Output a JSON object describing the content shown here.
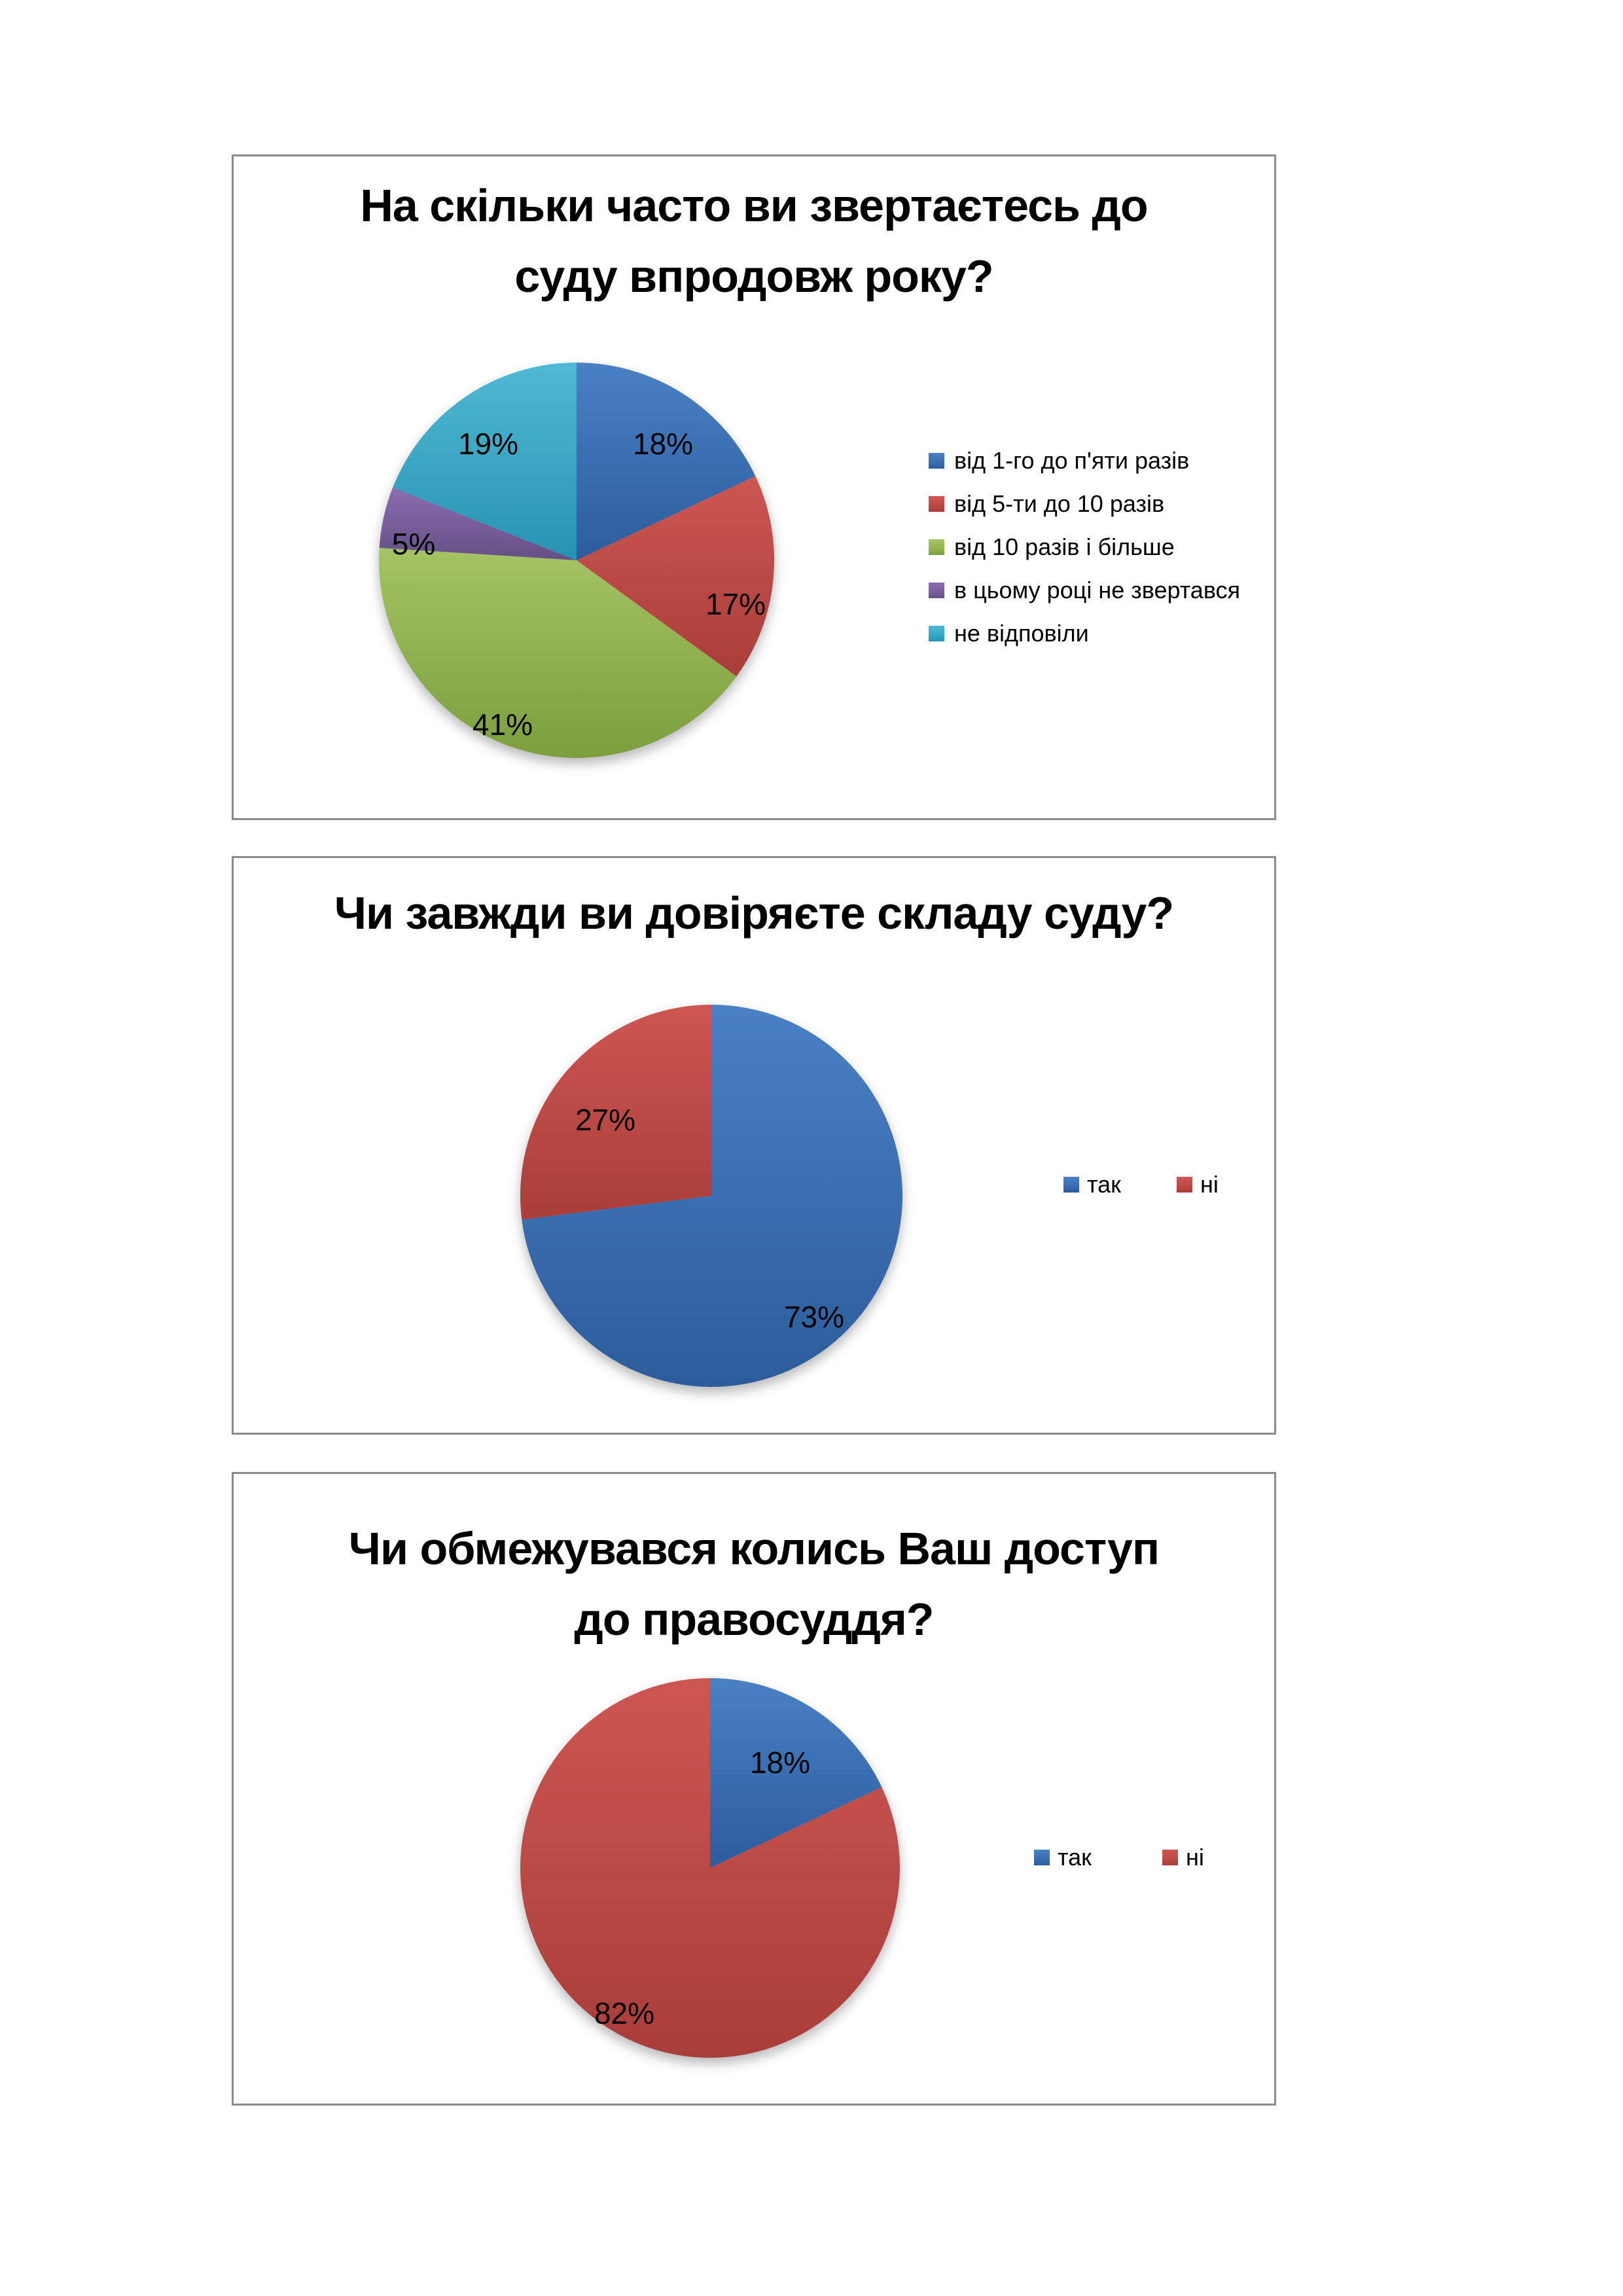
{
  "page": {
    "background": "#ffffff",
    "panel_border_color": "#8b8b8b"
  },
  "chart_data": [
    {
      "type": "pie",
      "title": "На скільки часто ви звертаєтесь до суду впродовж року?",
      "title_lines": [
        "На скільки часто ви звертаєтесь до",
        "суду впродовж року?"
      ],
      "categories": [
        "від 1-го до п'яти разів",
        "від 5-ти до 10 разів",
        "від 10 разів і більше",
        "в цьому році не звертався",
        "не відповіли"
      ],
      "values": [
        18,
        17,
        41,
        5,
        19
      ],
      "data_labels": [
        "18%",
        "17%",
        "41%",
        "5%",
        "19%"
      ],
      "colors": [
        {
          "base": "#3B6FB6",
          "light": "#4A80C4",
          "dark": "#2C5C9C"
        },
        {
          "base": "#C04A46",
          "light": "#CD5652",
          "dark": "#A93D3A"
        },
        {
          "base": "#94B551",
          "light": "#A5C364",
          "dark": "#7C9E3E"
        },
        {
          "base": "#7A5EA0",
          "light": "#8A6DB0",
          "dark": "#655086"
        },
        {
          "base": "#36AAC8",
          "light": "#4FB9D4",
          "dark": "#2892B2"
        }
      ],
      "start_angle_deg": 0,
      "direction": "clockwise",
      "labels_inside": true,
      "legend_position": "right",
      "label_pos": [
        [
          656,
          439
        ],
        [
          767,
          684
        ],
        [
          411,
          868
        ],
        [
          275,
          592
        ],
        [
          389,
          439
        ]
      ]
    },
    {
      "type": "pie",
      "title": "Чи завжди ви довіряєте складу суду?",
      "title_lines": [
        "Чи завжди ви довіряєте складу суду?"
      ],
      "categories": [
        "так",
        "ні"
      ],
      "values": [
        73,
        27
      ],
      "data_labels": [
        "73%",
        "27%"
      ],
      "colors": [
        {
          "base": "#3B6FB6",
          "light": "#4A80C4",
          "dark": "#2C5C9C"
        },
        {
          "base": "#C04A46",
          "light": "#CD5652",
          "dark": "#A93D3A"
        }
      ],
      "start_angle_deg": 0,
      "direction": "clockwise",
      "labels_inside": true,
      "legend_position": "right-middle",
      "label_pos": [
        [
          887,
          701
        ],
        [
          568,
          400
        ]
      ]
    },
    {
      "type": "pie",
      "title": "Чи обмежувався колись Ваш доступ до правосуддя?",
      "title_lines": [
        "Чи обмежувався колись Ваш доступ",
        "до правосуддя?"
      ],
      "categories": [
        "так",
        "ні"
      ],
      "values": [
        18,
        82
      ],
      "data_labels": [
        "18%",
        "82%"
      ],
      "colors": [
        {
          "base": "#3B6FB6",
          "light": "#4A80C4",
          "dark": "#2C5C9C"
        },
        {
          "base": "#C04A46",
          "light": "#CD5652",
          "dark": "#A93D3A"
        }
      ],
      "start_angle_deg": 0,
      "direction": "clockwise",
      "labels_inside": true,
      "legend_position": "right-middle",
      "label_pos": [
        [
          835,
          441
        ],
        [
          597,
          824
        ]
      ]
    }
  ]
}
